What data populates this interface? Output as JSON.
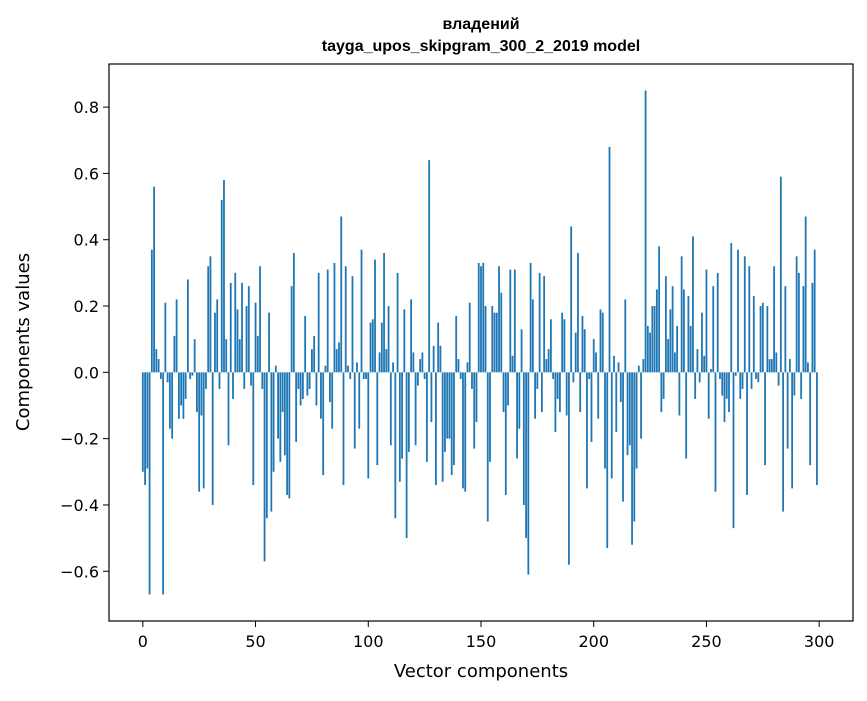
{
  "chart_data": {
    "type": "bar",
    "title_line1": "владений",
    "title_line2": "tayga_upos_skipgram_300_2_2019 model",
    "xlabel": "Vector components",
    "ylabel": "Components values",
    "xlim": [
      -15,
      315
    ],
    "ylim": [
      -0.75,
      0.93
    ],
    "xticks": [
      0,
      50,
      100,
      150,
      200,
      250,
      300
    ],
    "xtick_labels": [
      "0",
      "50",
      "100",
      "150",
      "200",
      "250",
      "300"
    ],
    "yticks": [
      -0.6,
      -0.4,
      -0.2,
      0.0,
      0.2,
      0.4,
      0.6,
      0.8
    ],
    "ytick_labels": [
      "−0.6",
      "−0.4",
      "−0.2",
      "0.0",
      "0.2",
      "0.4",
      "0.6",
      "0.8"
    ],
    "bar_color": "#1f77b4",
    "grid": false,
    "values": [
      -0.3,
      -0.34,
      -0.29,
      -0.67,
      0.37,
      0.56,
      0.07,
      0.04,
      -0.02,
      -0.67,
      0.21,
      -0.03,
      -0.17,
      -0.2,
      0.11,
      0.22,
      -0.14,
      -0.1,
      -0.14,
      -0.08,
      0.28,
      -0.02,
      -0.01,
      0.1,
      -0.12,
      -0.36,
      -0.13,
      -0.35,
      -0.05,
      0.32,
      0.35,
      -0.4,
      0.18,
      0.22,
      -0.05,
      0.52,
      0.58,
      0.1,
      -0.22,
      0.27,
      -0.08,
      0.3,
      0.19,
      0.1,
      0.27,
      -0.05,
      0.2,
      0.26,
      -0.04,
      -0.34,
      0.21,
      0.11,
      0.32,
      -0.05,
      -0.57,
      -0.44,
      0.18,
      -0.42,
      -0.3,
      0.02,
      -0.2,
      -0.27,
      -0.12,
      -0.25,
      -0.37,
      -0.38,
      0.26,
      0.36,
      -0.21,
      -0.05,
      -0.1,
      -0.08,
      0.17,
      -0.07,
      -0.05,
      0.07,
      0.11,
      -0.1,
      0.3,
      -0.14,
      -0.31,
      0.02,
      0.31,
      -0.09,
      -0.17,
      0.33,
      0.07,
      0.09,
      0.47,
      -0.34,
      0.32,
      0.02,
      -0.02,
      0.29,
      -0.23,
      0.03,
      -0.17,
      0.37,
      -0.02,
      -0.02,
      -0.32,
      0.15,
      0.16,
      0.34,
      -0.28,
      0.06,
      0.15,
      0.36,
      0.07,
      0.2,
      -0.22,
      0.03,
      -0.44,
      0.3,
      -0.33,
      -0.26,
      0.19,
      -0.5,
      -0.24,
      0.22,
      0.06,
      -0.22,
      -0.04,
      0.04,
      0.06,
      -0.02,
      -0.27,
      0.64,
      -0.15,
      0.08,
      -0.34,
      0.15,
      0.08,
      -0.33,
      -0.24,
      -0.2,
      -0.2,
      -0.31,
      -0.28,
      0.17,
      0.04,
      -0.02,
      -0.35,
      -0.36,
      0.03,
      0.21,
      -0.05,
      -0.23,
      -0.15,
      0.33,
      0.32,
      0.33,
      0.2,
      -0.45,
      -0.27,
      0.2,
      0.18,
      0.18,
      0.32,
      0.24,
      -0.12,
      -0.37,
      -0.1,
      0.31,
      0.05,
      0.31,
      -0.26,
      -0.17,
      0.13,
      -0.4,
      -0.5,
      -0.61,
      0.33,
      0.22,
      -0.14,
      -0.05,
      0.3,
      -0.12,
      0.29,
      0.04,
      0.07,
      0.16,
      -0.02,
      -0.18,
      -0.08,
      -0.12,
      0.18,
      0.16,
      -0.13,
      -0.58,
      0.44,
      -0.03,
      0.12,
      0.36,
      -0.12,
      0.17,
      0.13,
      -0.35,
      -0.02,
      -0.21,
      0.1,
      0.06,
      -0.14,
      0.19,
      0.18,
      -0.29,
      -0.53,
      0.68,
      -0.32,
      0.05,
      -0.18,
      0.03,
      -0.09,
      -0.39,
      0.22,
      -0.25,
      -0.22,
      -0.52,
      -0.45,
      -0.29,
      0.02,
      -0.2,
      0.04,
      0.85,
      0.14,
      0.12,
      0.2,
      0.2,
      0.25,
      0.38,
      -0.12,
      -0.08,
      0.29,
      0.1,
      0.19,
      0.26,
      0.06,
      0.14,
      -0.13,
      0.35,
      0.25,
      -0.26,
      0.23,
      0.14,
      0.41,
      -0.08,
      0.07,
      -0.03,
      0.18,
      0.05,
      0.31,
      -0.14,
      0.01,
      0.26,
      -0.36,
      0.3,
      -0.02,
      -0.07,
      -0.15,
      -0.08,
      -0.12,
      0.39,
      -0.47,
      -0.01,
      0.37,
      -0.08,
      -0.05,
      0.35,
      -0.37,
      0.32,
      -0.05,
      0.23,
      -0.02,
      -0.03,
      0.2,
      0.21,
      -0.28,
      0.2,
      0.04,
      0.04,
      0.32,
      0.06,
      -0.04,
      0.59,
      -0.42,
      0.26,
      -0.23,
      0.04,
      -0.35,
      -0.07,
      0.35,
      0.3,
      -0.08,
      0.26,
      0.47,
      0.03,
      -0.28,
      0.27,
      0.37,
      -0.34
    ]
  }
}
